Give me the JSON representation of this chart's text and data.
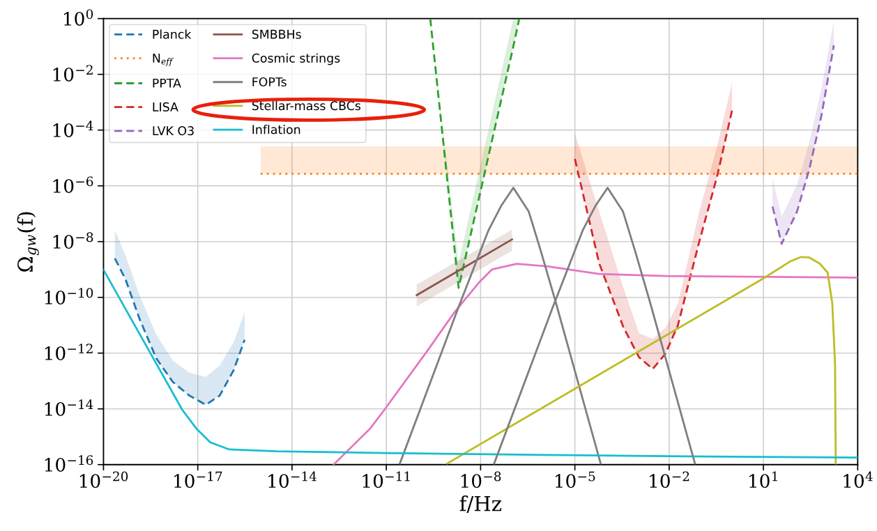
{
  "chart_data": {
    "type": "line",
    "xlabel": "f/Hz",
    "ylabel": "Ω$_{gw}$(f)",
    "log": "xy",
    "grid": true,
    "legend": "top left",
    "xlim": [
      1e-20,
      10000.0
    ],
    "ylim": [
      1e-16,
      1
    ],
    "xticks": [
      {
        "value": 1e-20,
        "label": "10$^{−20}$"
      },
      {
        "value": 1e-17,
        "label": "10$^{−17}$"
      },
      {
        "value": 1e-14,
        "label": "10$^{−14}$"
      },
      {
        "value": 1e-11,
        "label": "10$^{−11}$"
      },
      {
        "value": 1e-08,
        "label": "10$^{−8}$"
      },
      {
        "value": 1e-05,
        "label": "10$^{−5}$"
      },
      {
        "value": 0.01,
        "label": "10$^{−2}$"
      },
      {
        "value": 10,
        "label": "10$^{1}$"
      },
      {
        "value": 10000.0,
        "label": "10$^{4}$"
      }
    ],
    "yticks": [
      {
        "value": 1e-16,
        "label": "10$^{−16}$"
      },
      {
        "value": 1e-14,
        "label": "10$^{−14}$"
      },
      {
        "value": 1e-12,
        "label": "10$^{−12}$"
      },
      {
        "value": 1e-10,
        "label": "10$^{−10}$"
      },
      {
        "value": 1e-08,
        "label": "10$^{−8}$"
      },
      {
        "value": 1e-06,
        "label": "10$^{−6}$"
      },
      {
        "value": 0.0001,
        "label": "10$^{−4}$"
      },
      {
        "value": 0.01,
        "label": "10$^{−2}$"
      },
      {
        "value": 1,
        "label": "10$^{0}$"
      }
    ],
    "series": [
      {
        "name": "Planck",
        "line_style": "dashed",
        "color": "#1f77b4",
        "x": [
          2.3e-20,
          5e-20,
          1.4e-19,
          4.8e-19,
          1.6e-18,
          5.4e-18,
          1.8e-17,
          5e-17,
          1.4e-16,
          3.1e-16
        ],
        "values": [
          2.5e-09,
          4.5e-10,
          1.7e-11,
          6.5e-13,
          9.3e-14,
          3e-14,
          1.4e-14,
          3e-14,
          2.5e-13,
          3e-12
        ],
        "lower": [
          2.5e-09,
          4.5e-10,
          1.7e-11,
          6.5e-13,
          9.3e-14,
          3e-14,
          1.4e-14,
          3e-14,
          2.5e-13,
          3e-12
        ],
        "upper": [
          2.6e-08,
          3.2e-09,
          1.2e-10,
          4.5e-12,
          5.4e-13,
          2e-13,
          1.4e-13,
          3.6e-13,
          2.5e-12,
          3e-11
        ]
      },
      {
        "name": "N$_{eff}$",
        "line_style": "dotted",
        "color": "#ff7f0e",
        "x": [
          1e-15,
          10000.0
        ],
        "values": [
          2.7e-06,
          2.7e-06
        ],
        "lower": [
          2.7e-06,
          2.7e-06
        ],
        "upper": [
          2.6e-05,
          2.6e-05
        ]
      },
      {
        "name": "PPTA",
        "line_style": "dashed",
        "color": "#2ca02c",
        "x": [
          2.5e-10,
          2e-09,
          1.1e-07,
          1.7e-07
        ],
        "values": [
          1,
          2.2e-10,
          0.1,
          1
        ],
        "lower": [
          1,
          2.2e-10,
          0.1,
          1
        ],
        "upper": [
          1,
          1.7e-09,
          1,
          1
        ]
      },
      {
        "name": "LISA",
        "line_style": "dashed",
        "color": "#d62728",
        "x": [
          1e-05,
          5.9e-05,
          0.00035,
          0.0011,
          0.003,
          0.0076,
          0.019,
          0.089,
          0.34,
          1.0
        ],
        "values": [
          9.3e-06,
          1.7e-09,
          8.5e-12,
          7.1e-13,
          2.7e-13,
          9.5e-13,
          1e-11,
          9.1e-09,
          2.3e-06,
          0.0005
        ],
        "lower": [
          9.3e-06,
          1.7e-09,
          8.5e-12,
          7.1e-13,
          2.7e-13,
          9.5e-13,
          1e-11,
          9.1e-09,
          2.3e-06,
          0.0005
        ],
        "upper": [
          7.8e-05,
          1.2e-07,
          2.2e-10,
          5.2e-12,
          3.2e-12,
          8.1e-12,
          6e-11,
          1.1e-07,
          2.8e-05,
          0.0049
        ]
      },
      {
        "name": "LVK O3",
        "line_style": "dashed",
        "color": "#9467bd",
        "x": [
          19.5,
          38,
          117,
          288,
          708,
          1740
        ],
        "values": [
          1.8e-07,
          8.3e-09,
          1.2e-07,
          3.9e-06,
          0.00035,
          0.11
        ],
        "lower": [
          1.8e-07,
          8.3e-09,
          1.2e-07,
          3.9e-06,
          0.00035,
          0.11
        ],
        "upper": [
          1.8e-06,
          7.9e-08,
          1.1e-06,
          3.7e-05,
          0.0033,
          0.83
        ]
      },
      {
        "name": "SMBBHs",
        "line_style": "solid",
        "color": "#8c564b",
        "x": [
          9.3e-11,
          1e-07
        ],
        "values": [
          1.2e-10,
          1.2e-08
        ],
        "lower": [
          4.7e-11,
          4.7e-09
        ],
        "upper": [
          2.9e-10,
          2.7e-08
        ]
      },
      {
        "name": "Cosmic strings",
        "line_style": "solid",
        "color": "#e377c2",
        "x": [
          2.1e-13,
          3.1e-12,
          8.7e-12,
          1.9e-10,
          1.5e-09,
          9.3e-09,
          2.3e-08,
          1.4e-07,
          1.3e-06,
          5.9e-05,
          0.0085,
          10000.0
        ],
        "values": [
          1e-16,
          2e-15,
          9.3e-15,
          1.1e-12,
          3e-11,
          3.6e-10,
          1e-09,
          1.6e-09,
          1.3e-09,
          6.9e-10,
          5.8e-10,
          5.1e-10
        ]
      },
      {
        "name": "FOPTs",
        "line_style": "solid",
        "color": "#7f7f7f",
        "x": [
          2.7e-11,
          1.9e-09,
          1.8e-08,
          4.5e-08,
          1.1e-07,
          3.4e-07,
          8.3e-07,
          2.5e-06,
          6.6e-05
        ],
        "values": [
          1.1e-16,
          3.9e-11,
          2.6e-08,
          1.9e-07,
          8.5e-07,
          1.2e-07,
          4.5e-09,
          6.3e-11,
          1.1e-16
        ]
      },
      {
        "name": "Stellar-mass CBCs",
        "line_style": "solid",
        "color": "#bcbd22",
        "x": [
          8.7e-10,
          10,
          74,
          158,
          288,
          631,
          1100,
          1550,
          1900,
          2000
        ],
        "values": [
          1.1e-16,
          4.8e-10,
          2e-09,
          2.8e-09,
          2.7e-09,
          1.6e-09,
          7.8e-10,
          6.3e-11,
          4.3e-13,
          1.1e-16
        ]
      },
      {
        "name": "Inflation",
        "line_style": "solid",
        "color": "#17becf",
        "x": [
          1e-20,
          3.2e-18,
          8.9e-18,
          2.5e-17,
          1e-16,
          3.2e-15,
          8.7e-12,
          0.0085,
          10000.0
        ],
        "values": [
          9.8e-10,
          9.3e-15,
          2e-15,
          6.3e-16,
          3.5e-16,
          3e-16,
          2.6e-16,
          2e-16,
          1.8e-16
        ]
      },
      {
        "line_style": "solid",
        "color": "#7f7f7f",
        "x": [
          2.7e-08,
          1.9e-06,
          1.8e-05,
          4.5e-05,
          0.00011,
          0.00034,
          0.00083,
          0.0025,
          0.066
        ],
        "values": [
          1.1e-16,
          3.9e-11,
          2.6e-08,
          1.9e-07,
          8.5e-07,
          1.2e-07,
          4.5e-09,
          6.3e-11,
          1.1e-16
        ]
      }
    ]
  }
}
